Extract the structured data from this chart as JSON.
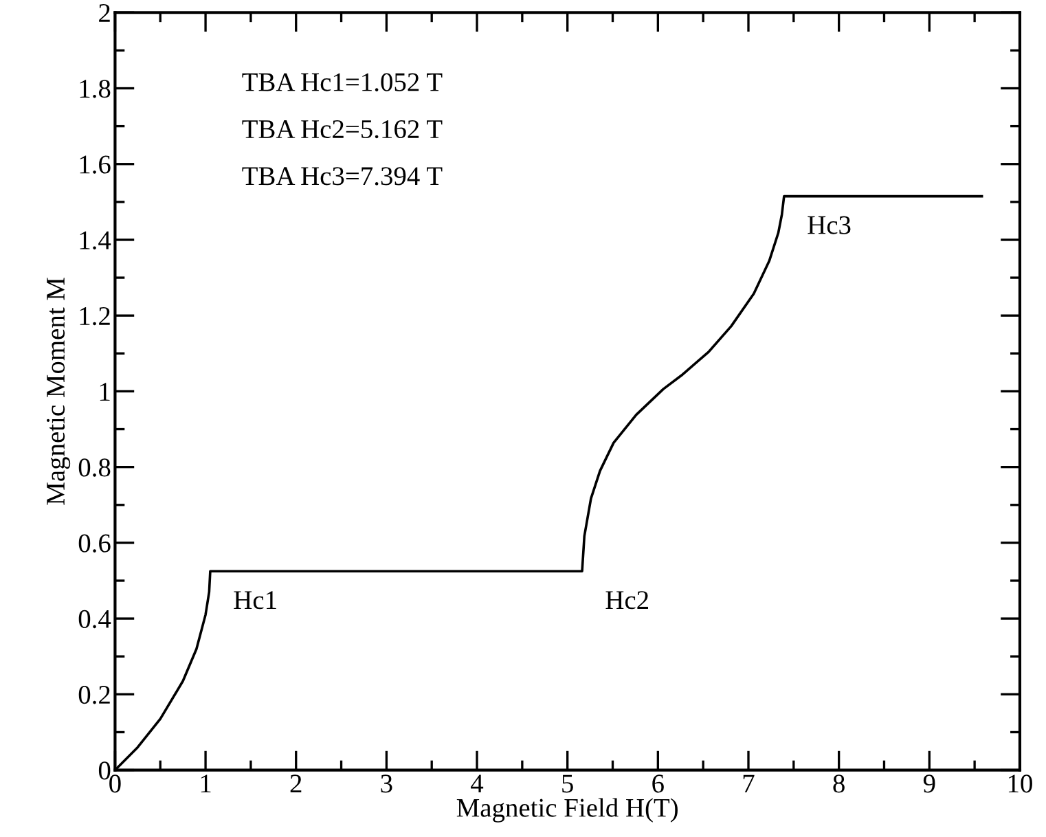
{
  "chart_data": {
    "type": "line",
    "xlabel": "Magnetic Field H(T)",
    "ylabel": "Magnetic Moment M",
    "series": [
      {
        "color": "#000000",
        "x": [
          0,
          0.25,
          0.5,
          0.75,
          0.9,
          1.0,
          1.04,
          1.052,
          5.162,
          5.187,
          5.26,
          5.36,
          5.51,
          5.76,
          6.06,
          6.26,
          6.56,
          6.81,
          7.06,
          7.23,
          7.33,
          7.37,
          7.394,
          9.58
        ],
        "values": [
          0,
          0.06,
          0.135,
          0.235,
          0.32,
          0.41,
          0.47,
          0.525,
          0.525,
          0.618,
          0.717,
          0.79,
          0.864,
          0.938,
          1.006,
          1.042,
          1.104,
          1.172,
          1.258,
          1.344,
          1.418,
          1.467,
          1.515,
          1.515
        ]
      }
    ],
    "xlim": [
      0,
      10
    ],
    "ylim": [
      0,
      2
    ],
    "xticks": [
      0,
      1,
      2,
      3,
      4,
      5,
      6,
      7,
      8,
      9,
      10
    ],
    "yticks": [
      0,
      0.2,
      0.4,
      0.6,
      0.8,
      1,
      1.2,
      1.4,
      1.6,
      1.8,
      2
    ],
    "grid": false,
    "legend": false,
    "marker": "none",
    "line_style": "solid",
    "annotations": [
      "TBA Hc1=1.052 T",
      "TBA Hc2=5.162 T",
      "TBA Hc3=7.394 T",
      {
        "text": "Hc1",
        "x": 1.052,
        "y": 0.525
      },
      {
        "text": "Hc2",
        "x": 5.162,
        "y": 0.525
      },
      {
        "text": "Hc3",
        "x": 7.394,
        "y": 1.515
      }
    ]
  }
}
